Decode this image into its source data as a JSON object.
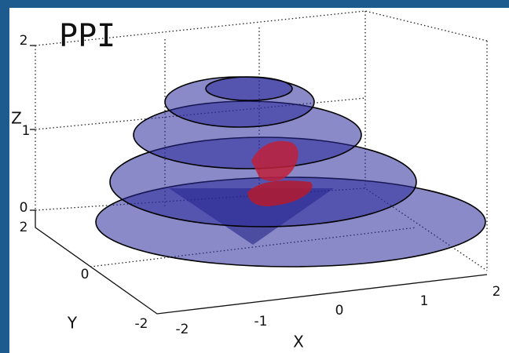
{
  "title": "PPI",
  "axes": {
    "z": {
      "label": "Z",
      "ticks": [
        "0",
        "1",
        "2"
      ]
    },
    "y": {
      "label": "Y",
      "ticks": [
        "-2",
        "0",
        "2"
      ]
    },
    "x": {
      "label": "X",
      "ticks": [
        "-2",
        "-1",
        "0",
        "1",
        "2"
      ]
    }
  }
}
